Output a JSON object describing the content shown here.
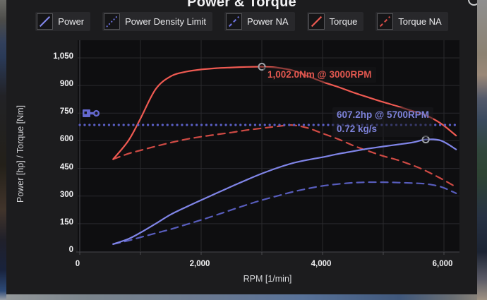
{
  "window": {
    "expand_icon": "circle-expand"
  },
  "colors": {
    "card_bg": "#1c1c1e",
    "plot_bg": "#0e0e10",
    "grid": "#29292d",
    "axis": "#3d3d42",
    "power": "#8085e8",
    "power_na": "#585dbd",
    "torque": "#ef5a52",
    "torque_na": "#cf4a44",
    "limit": "#5b60c7",
    "marker": "#9ea2a8",
    "annotation_red": "#e2574f",
    "annotation_purple": "#7d82da",
    "piston_icon": "#6468cf"
  },
  "legend": [
    {
      "label": "Power",
      "color": "#8085e8",
      "style": "solid"
    },
    {
      "label": "Power Density Limit",
      "color": "#6a6fd8",
      "style": "dotted"
    },
    {
      "label": "Power NA",
      "color": "#6a6fd8",
      "style": "dashed"
    },
    {
      "label": "Torque",
      "color": "#ef5a52",
      "style": "solid"
    },
    {
      "label": "Torque NA",
      "color": "#d04a45",
      "style": "dashed"
    }
  ],
  "chart_data": {
    "type": "line",
    "title": "Power & Torque",
    "xlabel": "RPM [1/min]",
    "ylabel": "Power [hp] / Torque [Nm]",
    "xlim": [
      0,
      6200
    ],
    "ylim": [
      0,
      1080
    ],
    "grid": true,
    "legend_position": "top",
    "x_ticks": [
      {
        "value": 0,
        "label": "0"
      },
      {
        "value": 2000,
        "label": "2,000"
      },
      {
        "value": 4000,
        "label": "4,000"
      },
      {
        "value": 6000,
        "label": "6,000"
      }
    ],
    "x_minor_step": 1000,
    "y_ticks": [
      {
        "value": 0,
        "label": "0"
      },
      {
        "value": 150,
        "label": "150"
      },
      {
        "value": 300,
        "label": "300"
      },
      {
        "value": 450,
        "label": "450"
      },
      {
        "value": 600,
        "label": "600"
      },
      {
        "value": 750,
        "label": "750"
      },
      {
        "value": 900,
        "label": "900"
      },
      {
        "value": 1050,
        "label": "1,050"
      }
    ],
    "rpm": [
      550,
      800,
      1000,
      1250,
      1500,
      1750,
      2000,
      2250,
      2500,
      2750,
      3000,
      3250,
      3500,
      3750,
      4000,
      4250,
      4500,
      4750,
      5000,
      5250,
      5500,
      5700,
      5950,
      6200
    ],
    "series": [
      {
        "name": "Torque NA",
        "unit": "Nm",
        "color": "#cf4a44",
        "style": "dashed",
        "values": [
          500,
          530,
          548,
          570,
          590,
          608,
          622,
          634,
          645,
          658,
          668,
          678,
          685,
          670,
          640,
          610,
          575,
          545,
          517,
          494,
          465,
          437,
          395,
          349
        ]
      },
      {
        "name": "Power NA",
        "unit": "hp",
        "color": "#585dbd",
        "style": "dashed",
        "values": [
          39,
          58,
          76,
          98,
          120,
          145,
          170,
          197,
          225,
          252,
          278,
          300,
          322,
          340,
          355,
          365,
          372,
          375,
          375,
          373,
          370,
          366,
          350,
          315
        ]
      },
      {
        "name": "Torque",
        "unit": "Nm",
        "color": "#ef5a52",
        "style": "solid",
        "values": [
          500,
          600,
          720,
          880,
          950,
          975,
          987,
          994,
          998,
          1001,
          1002,
          997,
          983,
          952,
          920,
          893,
          863,
          836,
          810,
          786,
          760,
          739,
          694,
          628
        ]
      },
      {
        "name": "Power",
        "unit": "hp",
        "color": "#8085e8",
        "style": "solid",
        "values": [
          39,
          67,
          101,
          150,
          200,
          240,
          278,
          315,
          352,
          388,
          422,
          452,
          478,
          496,
          511,
          528,
          543,
          557,
          569,
          580,
          592,
          607,
          601,
          553
        ]
      }
    ],
    "limit_line": {
      "name": "Power Density Limit",
      "value": 686,
      "color": "#5b60c7",
      "style": "dotted"
    },
    "markers": [
      {
        "series": "Torque",
        "rpm": 3000,
        "value": 1002
      },
      {
        "series": "Power",
        "rpm": 5700,
        "value": 607.2
      }
    ],
    "annotations": {
      "torque_peak": {
        "text": "1,002.0Nm @ 3000RPM",
        "color": "#e2574f",
        "anchor_rpm": 3000,
        "anchor_value": 1002
      },
      "power_peak": {
        "text": "607.2hp @ 5700RPM",
        "color": "#7d82da",
        "anchor_rpm": 5700,
        "anchor_value": 607.2
      },
      "mass_flow": {
        "text": "0.72 kg/s",
        "color": "#7d82da"
      }
    }
  }
}
